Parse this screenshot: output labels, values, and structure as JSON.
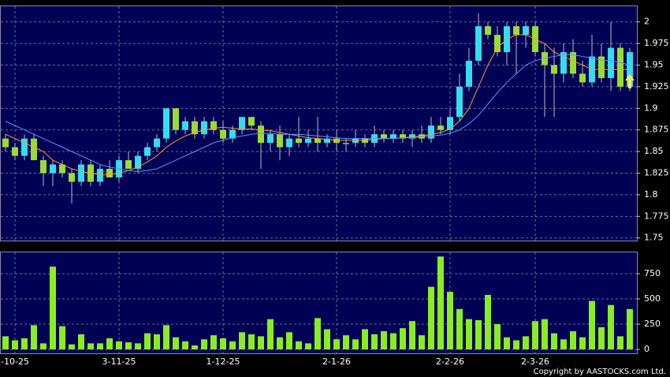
{
  "chart_data": [
    {
      "type": "candlestick",
      "open": [
        1.865,
        1.855,
        1.845,
        1.865,
        1.84,
        1.825,
        1.835,
        1.825,
        1.815,
        1.835,
        1.815,
        1.83,
        1.82,
        1.84,
        1.83,
        1.845,
        1.855,
        1.865,
        1.9,
        1.875,
        1.885,
        1.87,
        1.885,
        1.875,
        1.865,
        1.875,
        1.89,
        1.88,
        1.86,
        1.87,
        1.855,
        1.865,
        1.86,
        1.865,
        1.86,
        1.865,
        1.86,
        1.86,
        1.865,
        1.86,
        1.87,
        1.865,
        1.87,
        1.865,
        1.87,
        1.865,
        1.88,
        1.875,
        1.89,
        1.925,
        1.955,
        1.995,
        1.985,
        1.965,
        1.995,
        1.985,
        1.995,
        1.965,
        1.95,
        1.94,
        1.965,
        1.94,
        1.93,
        1.96,
        1.935,
        1.97,
        1.925
      ],
      "high": [
        1.87,
        1.86,
        1.87,
        1.87,
        1.845,
        1.84,
        1.84,
        1.83,
        1.84,
        1.84,
        1.835,
        1.84,
        1.845,
        1.85,
        1.85,
        1.86,
        1.87,
        1.9,
        1.9,
        1.89,
        1.89,
        1.89,
        1.89,
        1.885,
        1.88,
        1.89,
        1.89,
        1.885,
        1.875,
        1.88,
        1.87,
        1.89,
        1.875,
        1.89,
        1.87,
        1.875,
        1.865,
        1.875,
        1.87,
        1.88,
        1.875,
        1.875,
        1.875,
        1.875,
        1.88,
        1.89,
        1.89,
        1.9,
        1.94,
        1.97,
        2.01,
        2.0,
        1.995,
        2.0,
        2.0,
        2.0,
        2.0,
        1.975,
        1.97,
        1.975,
        1.98,
        1.955,
        1.985,
        1.975,
        2.0,
        1.975,
        1.97
      ],
      "low": [
        1.85,
        1.84,
        1.84,
        1.84,
        1.81,
        1.81,
        1.82,
        1.79,
        1.81,
        1.81,
        1.81,
        1.82,
        1.815,
        1.83,
        1.825,
        1.84,
        1.85,
        1.86,
        1.87,
        1.87,
        1.865,
        1.865,
        1.87,
        1.86,
        1.86,
        1.87,
        1.875,
        1.83,
        1.85,
        1.84,
        1.845,
        1.855,
        1.855,
        1.85,
        1.855,
        1.85,
        1.85,
        1.855,
        1.855,
        1.855,
        1.86,
        1.86,
        1.86,
        1.855,
        1.86,
        1.86,
        1.87,
        1.87,
        1.885,
        1.92,
        1.95,
        1.98,
        1.96,
        1.95,
        1.94,
        1.97,
        1.96,
        1.89,
        1.89,
        1.93,
        1.935,
        1.925,
        1.925,
        1.93,
        1.92,
        1.92,
        1.92
      ],
      "close": [
        1.855,
        1.845,
        1.865,
        1.84,
        1.825,
        1.835,
        1.825,
        1.815,
        1.835,
        1.815,
        1.83,
        1.82,
        1.84,
        1.83,
        1.845,
        1.855,
        1.865,
        1.9,
        1.875,
        1.885,
        1.87,
        1.885,
        1.875,
        1.865,
        1.875,
        1.89,
        1.88,
        1.86,
        1.87,
        1.855,
        1.865,
        1.86,
        1.865,
        1.86,
        1.865,
        1.86,
        1.86,
        1.865,
        1.86,
        1.87,
        1.865,
        1.87,
        1.865,
        1.87,
        1.865,
        1.88,
        1.875,
        1.89,
        1.925,
        1.955,
        1.995,
        1.985,
        1.965,
        1.995,
        1.985,
        1.995,
        1.965,
        1.95,
        1.94,
        1.965,
        1.94,
        1.93,
        1.96,
        1.935,
        1.97,
        1.925,
        1.965
      ],
      "up_color": "#33ddee",
      "down_color": "#99dd33",
      "series": [
        {
          "color": "#ff9933",
          "values": [
            1.87,
            1.865,
            1.86,
            1.855,
            1.85,
            1.84,
            1.835,
            1.83,
            1.827,
            1.825,
            1.823,
            1.823,
            1.825,
            1.828,
            1.832,
            1.838,
            1.845,
            1.855,
            1.862,
            1.868,
            1.872,
            1.875,
            1.877,
            1.878,
            1.877,
            1.876,
            1.876,
            1.875,
            1.874,
            1.872,
            1.87,
            1.868,
            1.866,
            1.865,
            1.864,
            1.863,
            1.863,
            1.863,
            1.863,
            1.864,
            1.865,
            1.865,
            1.866,
            1.867,
            1.868,
            1.87,
            1.872,
            1.876,
            1.885,
            1.9,
            1.925,
            1.95,
            1.97,
            1.98,
            1.985,
            1.985,
            1.98,
            1.975,
            1.965,
            1.96,
            1.955,
            1.95,
            1.945,
            1.945,
            1.945,
            1.945,
            1.945
          ]
        },
        {
          "color": "#5599ff",
          "values": [
            1.885,
            1.88,
            1.875,
            1.87,
            1.865,
            1.86,
            1.855,
            1.85,
            1.845,
            1.84,
            1.835,
            1.832,
            1.83,
            1.828,
            1.827,
            1.828,
            1.83,
            1.835,
            1.84,
            1.845,
            1.85,
            1.855,
            1.86,
            1.863,
            1.866,
            1.868,
            1.87,
            1.871,
            1.871,
            1.87,
            1.87,
            1.87,
            1.869,
            1.868,
            1.867,
            1.866,
            1.865,
            1.865,
            1.865,
            1.865,
            1.865,
            1.865,
            1.866,
            1.866,
            1.867,
            1.868,
            1.869,
            1.871,
            1.875,
            1.882,
            1.892,
            1.905,
            1.918,
            1.93,
            1.94,
            1.95,
            1.955,
            1.958,
            1.96,
            1.962,
            1.962,
            1.96,
            1.958,
            1.956,
            1.955,
            1.953,
            1.95
          ]
        }
      ],
      "ylim": [
        1.747,
        2.018
      ],
      "yticks": [
        1.75,
        1.775,
        1.8,
        1.825,
        1.85,
        1.875,
        1.9,
        1.925,
        1.95,
        1.975,
        2
      ],
      "grid": true
    },
    {
      "type": "bar",
      "values": [
        130,
        90,
        110,
        240,
        60,
        820,
        230,
        50,
        150,
        60,
        60,
        110,
        80,
        70,
        60,
        160,
        150,
        240,
        120,
        80,
        40,
        100,
        140,
        110,
        80,
        170,
        150,
        130,
        300,
        120,
        170,
        80,
        60,
        310,
        200,
        100,
        140,
        100,
        200,
        150,
        180,
        160,
        210,
        280,
        140,
        620,
        920,
        570,
        400,
        300,
        290,
        540,
        250,
        120,
        90,
        130,
        280,
        300,
        160,
        100,
        180,
        120,
        480,
        220,
        440,
        130,
        400
      ],
      "color": "#88ee22",
      "ylim": [
        -39,
        961
      ],
      "yticks": [
        0,
        250,
        500,
        750
      ],
      "xticks": [
        {
          "value": 1,
          "label": "-10-25"
        },
        {
          "value": 12,
          "label": "3-11-25"
        },
        {
          "value": 23,
          "label": "1-12-25"
        },
        {
          "value": 35,
          "label": "2-1-26"
        },
        {
          "value": 47,
          "label": "2-2-26"
        },
        {
          "value": 56,
          "label": "2-3-26"
        }
      ],
      "grid": true
    }
  ],
  "copyright": "Copyright by AASTOCKS.com Ltd."
}
